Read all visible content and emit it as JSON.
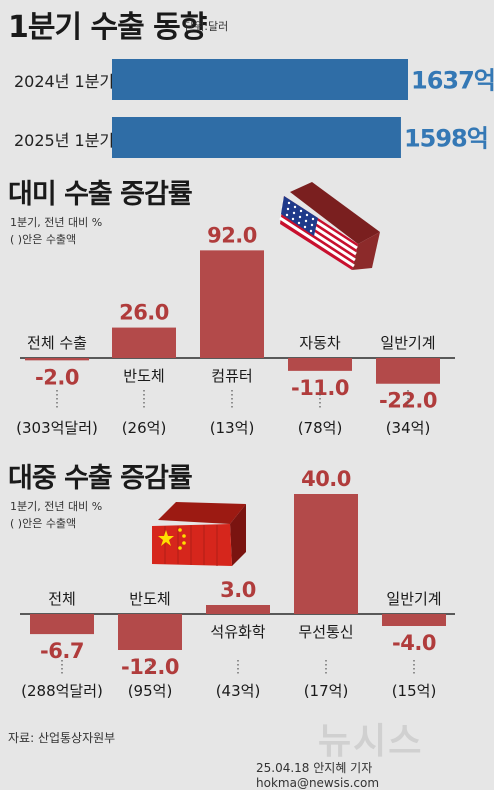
{
  "title": "1분기 수출 동향",
  "unit": "단위:달러",
  "source": "자료: 산업통상자원부",
  "credit": "25.04.18 안지혜 기자 hokma@newsis.com",
  "watermark": "뉴시스",
  "colors": {
    "blue": "#2f6da6",
    "red": "#b34a4a",
    "value_blue": "#3478b5",
    "value_red": "#b03c3c"
  },
  "flags": {
    "us": "us-flag-container-icon",
    "cn": "china-flag-container-icon"
  },
  "chart_data": [
    {
      "type": "bar",
      "title": "1분기 수출 동향",
      "orientation": "horizontal",
      "categories": [
        "2024년 1분기",
        "2025년 1분기"
      ],
      "values": [
        1637,
        1598
      ],
      "value_labels": [
        "1637억",
        "1598억"
      ],
      "unit": "단위:달러"
    },
    {
      "type": "bar",
      "title": "대미 수출 증감률",
      "subtitle": "1분기, 전년 대비 %",
      "note": "( )안은 수출액",
      "categories": [
        "전체 수출",
        "반도체",
        "컴퓨터",
        "자동차",
        "일반기계"
      ],
      "values": [
        -2.0,
        26.0,
        92.0,
        -11.0,
        -22.0
      ],
      "value_labels": [
        "-2.0",
        "26.0",
        "92.0",
        "-11.0",
        "-22.0"
      ],
      "amounts": [
        "(303억달러)",
        "(26억)",
        "(13억)",
        "(78억)",
        "(34억)"
      ]
    },
    {
      "type": "bar",
      "title": "대중 수출 증감률",
      "subtitle": "1분기, 전년 대비 %",
      "note": "( )안은 수출액",
      "categories": [
        "전체",
        "반도체",
        "석유화학",
        "무선통신",
        "일반기계"
      ],
      "values": [
        -6.7,
        -12.0,
        3.0,
        40.0,
        -4.0
      ],
      "value_labels": [
        "-6.7",
        "-12.0",
        "3.0",
        "40.0",
        "-4.0"
      ],
      "amounts": [
        "(288억달러)",
        "(95억)",
        "(43억)",
        "(17억)",
        "(15억)"
      ]
    }
  ]
}
